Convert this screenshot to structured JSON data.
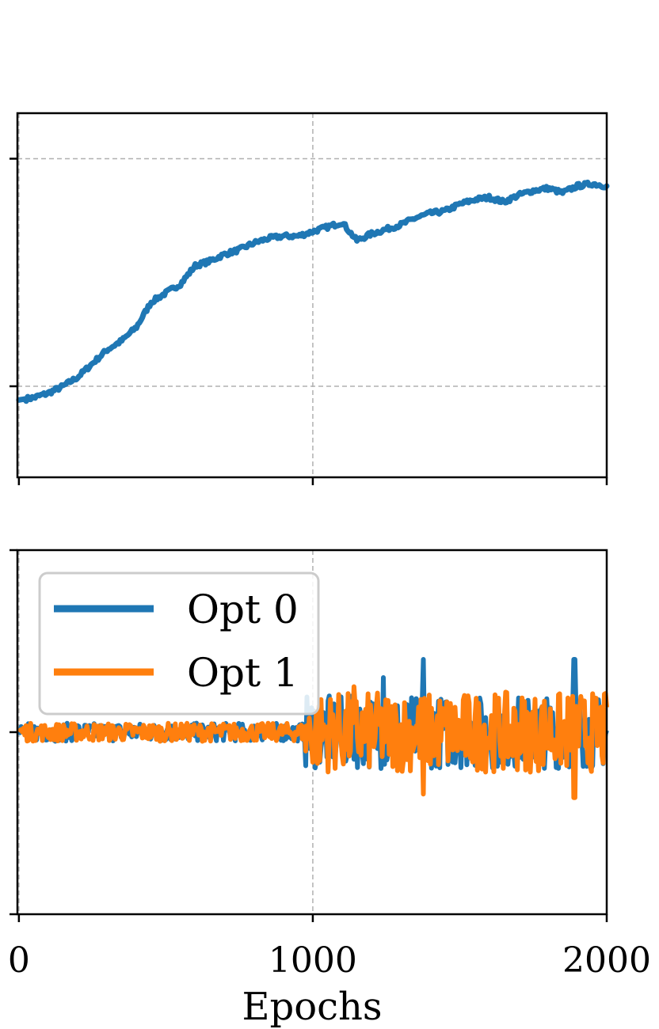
{
  "chart_data": [
    {
      "type": "line",
      "title": "",
      "xlabel": "",
      "ylabel": "",
      "xlim": [
        -5,
        2000
      ],
      "ylim": [
        -0.4,
        1.2
      ],
      "xticks": [
        0,
        1000,
        2000
      ],
      "yticks": [
        0,
        1
      ],
      "show_xtick_labels": false,
      "show_ytick_labels": false,
      "grid": true,
      "series": [
        {
          "color": "#1f77b4",
          "x": [
            0,
            50,
            100,
            150,
            200,
            250,
            300,
            350,
            400,
            450,
            500,
            550,
            600,
            650,
            700,
            750,
            800,
            850,
            900,
            950,
            1000,
            1050,
            1100,
            1150,
            1200,
            1250,
            1300,
            1350,
            1400,
            1450,
            1500,
            1550,
            1600,
            1650,
            1700,
            1750,
            1800,
            1850,
            1900,
            1950,
            2000
          ],
          "y": [
            -0.06,
            -0.05,
            -0.03,
            0.0,
            0.04,
            0.1,
            0.16,
            0.2,
            0.26,
            0.37,
            0.41,
            0.45,
            0.53,
            0.55,
            0.58,
            0.6,
            0.63,
            0.65,
            0.66,
            0.66,
            0.68,
            0.7,
            0.72,
            0.64,
            0.67,
            0.69,
            0.71,
            0.74,
            0.76,
            0.77,
            0.8,
            0.82,
            0.83,
            0.81,
            0.84,
            0.86,
            0.87,
            0.85,
            0.88,
            0.89,
            0.88
          ]
        }
      ]
    },
    {
      "type": "line",
      "title": "",
      "xlabel": "Epochs",
      "ylabel": "",
      "xlim": [
        -5,
        2000
      ],
      "ylim": [
        -1.0,
        1.0
      ],
      "xticks": [
        0,
        1000,
        2000
      ],
      "xtick_labels": [
        "0",
        "1000",
        "2000"
      ],
      "yticks": [
        -1,
        0,
        1
      ],
      "show_ytick_labels": false,
      "grid": true,
      "legend_position": "upper-left",
      "series": [
        {
          "name": "Opt 0",
          "color": "#1f77b4",
          "noise_pre": 0.05,
          "noise_post": 0.2,
          "spikes": [
            {
              "x": 1375,
              "y": 0.4
            },
            {
              "x": 1890,
              "y": 0.4
            },
            {
              "x": 1240,
              "y": 0.3
            }
          ]
        },
        {
          "name": "Opt 1",
          "color": "#ff7f0e",
          "noise_pre": 0.05,
          "noise_post": 0.22,
          "spikes": [
            {
              "x": 1375,
              "y": -0.34
            },
            {
              "x": 1890,
              "y": -0.36
            },
            {
              "x": 1140,
              "y": 0.25
            }
          ]
        }
      ]
    }
  ]
}
